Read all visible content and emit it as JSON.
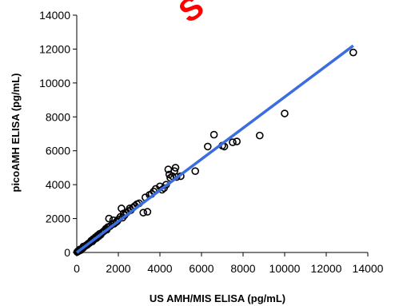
{
  "chart_data": {
    "type": "scatter",
    "title": "",
    "xlabel": "US AMH/MIS ELISA (pg/mL)",
    "ylabel": "picoAMH ELISA (pg/mL)",
    "xlim": [
      0,
      14000
    ],
    "ylim": [
      0,
      14000
    ],
    "x_ticks": [
      "0",
      "2000",
      "4000",
      "6000",
      "8000",
      "10000",
      "12000",
      "14000"
    ],
    "y_ticks": [
      "0",
      "2000",
      "4000",
      "6000",
      "8000",
      "10000",
      "12000",
      "14000"
    ],
    "grid": false,
    "legend": "none",
    "series": [
      {
        "marker": "open-circle",
        "color": "#000000",
        "points": [
          [
            20,
            30
          ],
          [
            60,
            80
          ],
          [
            120,
            100
          ],
          [
            150,
            180
          ],
          [
            200,
            150
          ],
          [
            250,
            230
          ],
          [
            300,
            260
          ],
          [
            320,
            350
          ],
          [
            400,
            380
          ],
          [
            450,
            420
          ],
          [
            500,
            450
          ],
          [
            550,
            520
          ],
          [
            600,
            550
          ],
          [
            650,
            600
          ],
          [
            700,
            700
          ],
          [
            750,
            650
          ],
          [
            800,
            800
          ],
          [
            850,
            780
          ],
          [
            900,
            900
          ],
          [
            950,
            850
          ],
          [
            1000,
            1000
          ],
          [
            1050,
            950
          ],
          [
            1100,
            1100
          ],
          [
            1150,
            1050
          ],
          [
            1200,
            1150
          ],
          [
            1250,
            1200
          ],
          [
            1300,
            1250
          ],
          [
            1350,
            1300
          ],
          [
            1400,
            1400
          ],
          [
            1450,
            1350
          ],
          [
            1500,
            1500
          ],
          [
            1550,
            2000
          ],
          [
            1600,
            1550
          ],
          [
            1700,
            1650
          ],
          [
            1750,
            1900
          ],
          [
            1800,
            1700
          ],
          [
            1900,
            1800
          ],
          [
            1950,
            1850
          ],
          [
            2000,
            1950
          ],
          [
            2100,
            2100
          ],
          [
            2150,
            2600
          ],
          [
            2200,
            2050
          ],
          [
            2250,
            2300
          ],
          [
            2300,
            2200
          ],
          [
            2400,
            2350
          ],
          [
            2500,
            2450
          ],
          [
            2550,
            2600
          ],
          [
            2600,
            2500
          ],
          [
            2700,
            2650
          ],
          [
            2800,
            2750
          ],
          [
            2900,
            2850
          ],
          [
            3000,
            2900
          ],
          [
            3200,
            2350
          ],
          [
            3300,
            3250
          ],
          [
            3400,
            2400
          ],
          [
            3500,
            3400
          ],
          [
            3600,
            3450
          ],
          [
            3700,
            3600
          ],
          [
            3800,
            3750
          ],
          [
            4000,
            3900
          ],
          [
            4100,
            3700
          ],
          [
            4200,
            3800
          ],
          [
            4300,
            4000
          ],
          [
            4400,
            4900
          ],
          [
            4450,
            4600
          ],
          [
            4500,
            4400
          ],
          [
            4600,
            4500
          ],
          [
            4700,
            4800
          ],
          [
            4750,
            5000
          ],
          [
            4800,
            4450
          ],
          [
            5000,
            4500
          ],
          [
            5700,
            4800
          ],
          [
            6300,
            6250
          ],
          [
            6600,
            6950
          ],
          [
            7000,
            6300
          ],
          [
            7100,
            6250
          ],
          [
            7500,
            6500
          ],
          [
            7700,
            6550
          ],
          [
            8800,
            6900
          ],
          [
            10000,
            8200
          ],
          [
            13300,
            11800
          ]
        ]
      }
    ],
    "trendline": {
      "type": "linear",
      "color": "#3b6de0",
      "x": [
        0,
        13300
      ],
      "y": [
        0,
        12200
      ]
    },
    "watermark": {
      "text": "S",
      "color": "#ff0000"
    }
  }
}
